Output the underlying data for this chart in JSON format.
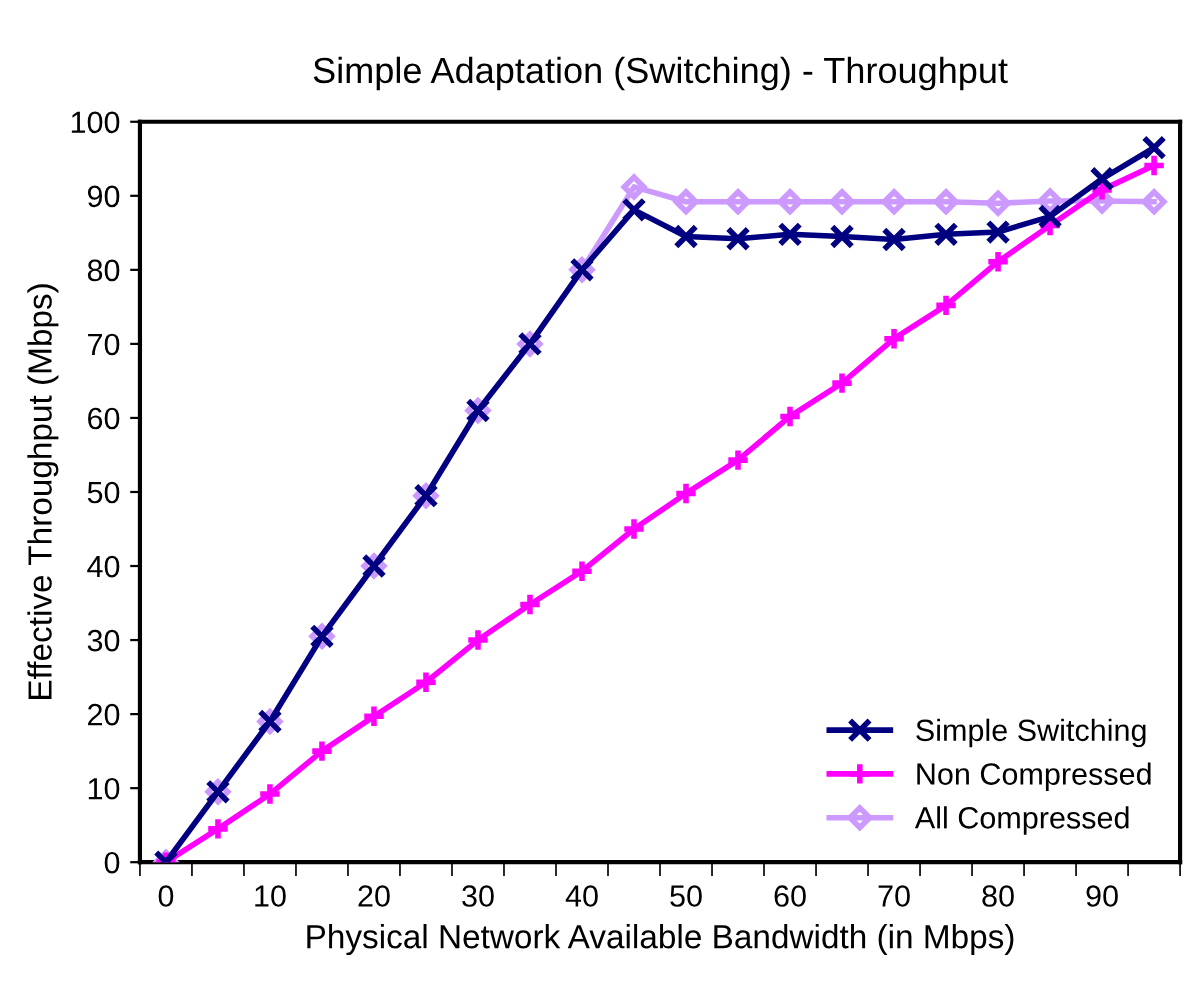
{
  "chart_data": {
    "type": "line",
    "title": "Simple Adaptation (Switching) - Throughput",
    "xlabel": "Physical Network Available Bandwidth (in Mbps)",
    "ylabel": "Effective Throughput (Mbps)",
    "categories": [
      "0",
      null,
      "10",
      null,
      "20",
      null,
      "30",
      null,
      "40",
      null,
      "50",
      null,
      "60",
      null,
      "70",
      null,
      "80",
      null,
      "90",
      null
    ],
    "ylim": [
      0,
      100
    ],
    "yticks": [
      0,
      10,
      20,
      30,
      40,
      50,
      60,
      70,
      80,
      90,
      100
    ],
    "grid": false,
    "legend": "bottom right",
    "line_style": "solid",
    "series": [
      {
        "name": "Simple Switching",
        "color": "#000080",
        "marker": "cross",
        "values": [
          0,
          9.5,
          19,
          30.5,
          40,
          49.5,
          61,
          70,
          80,
          88.1,
          84.5,
          84.2,
          84.8,
          84.5,
          84.1,
          84.8,
          85.1,
          87.2,
          92.3,
          96.5
        ]
      },
      {
        "name": "Non Compressed",
        "color": "#ff00ff",
        "marker": "plus",
        "values": [
          0,
          4.5,
          9.2,
          15,
          19.7,
          24.3,
          30,
          34.8,
          39.3,
          45,
          49.8,
          54.3,
          60.2,
          64.7,
          70.7,
          75.2,
          81.1,
          86,
          90.8,
          94.1
        ]
      },
      {
        "name": "All Compressed",
        "color": "#cc99ff",
        "marker": "diamond",
        "values": [
          0,
          9.5,
          19,
          30.5,
          40,
          49.5,
          61,
          70,
          80,
          91.2,
          89.2,
          89.2,
          89.2,
          89.2,
          89.2,
          89.2,
          89,
          89.3,
          89.3,
          89.2
        ]
      }
    ]
  }
}
